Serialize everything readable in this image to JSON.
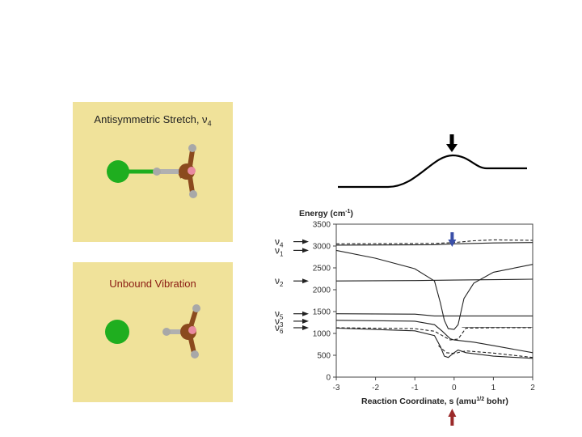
{
  "panels": {
    "top": {
      "caption": "Antisymmetric Stretch, ν",
      "subscript": "4"
    },
    "bottom": {
      "caption": "Unbound Vibration"
    }
  },
  "colors": {
    "panel_bg": "#f0e29a",
    "chlorine": "#1fae1f",
    "carbon": "#8b4a1e",
    "hydrogen": "#a8a8a8",
    "highlight": "#e98aa0",
    "arrow_top": "#000000",
    "arrow_blue": "#3a4fa8",
    "arrow_red": "#9b2a2a"
  },
  "icons": [
    "cl-atom-icon",
    "carbon-atom-icon",
    "hydrogen-atom-icon",
    "down-arrow-icon",
    "up-arrow-icon"
  ],
  "chart_data": {
    "type": "line",
    "title": "Energy (cm",
    "title_sup": "-1",
    "title_end": ")",
    "xlabel": "Reaction Coordinate, s (amu",
    "xlabel_sup": "1/2",
    "xlabel_end": " bohr)",
    "xlim": [
      -3,
      2
    ],
    "ylim": [
      0,
      3500
    ],
    "xticks": [
      "-3",
      "-2",
      "-1",
      "0",
      "1",
      "2"
    ],
    "yticks": [
      "0",
      "500",
      "1000",
      "1500",
      "2000",
      "2500",
      "3000",
      "3500"
    ],
    "mode_labels": [
      {
        "name": "ν",
        "sub": "4",
        "value": 3100
      },
      {
        "name": "ν",
        "sub": "1",
        "value": 2900
      },
      {
        "name": "ν",
        "sub": "2",
        "value": 2200
      },
      {
        "name": "ν",
        "sub": "5",
        "value": 1450
      },
      {
        "name": "ν",
        "sub": "3",
        "value": 1280
      },
      {
        "name": "ν",
        "sub": "6",
        "value": 1130
      }
    ],
    "series": [
      {
        "style": "dashed",
        "points": [
          [
            -3,
            3050
          ],
          [
            -0.5,
            3060
          ],
          [
            0,
            3080
          ],
          [
            0.5,
            3120
          ],
          [
            1,
            3140
          ],
          [
            2,
            3130
          ]
        ]
      },
      {
        "style": "solid",
        "points": [
          [
            -3,
            3020
          ],
          [
            -0.5,
            3030
          ],
          [
            0,
            3050
          ],
          [
            0.5,
            3060
          ],
          [
            1,
            3070
          ],
          [
            2,
            3080
          ]
        ]
      },
      {
        "style": "solid",
        "points": [
          [
            -3,
            2900
          ],
          [
            -2,
            2720
          ],
          [
            -1,
            2480
          ],
          [
            -0.5,
            2200
          ],
          [
            -0.35,
            1700
          ],
          [
            -0.25,
            1300
          ],
          [
            -0.15,
            1110
          ],
          [
            0,
            1090
          ],
          [
            0.1,
            1200
          ],
          [
            0.25,
            1800
          ],
          [
            0.5,
            2150
          ],
          [
            1,
            2400
          ],
          [
            2,
            2580
          ]
        ]
      },
      {
        "style": "solid",
        "points": [
          [
            -3,
            2200
          ],
          [
            -1,
            2210
          ],
          [
            0,
            2220
          ],
          [
            1,
            2230
          ],
          [
            2,
            2240
          ]
        ]
      },
      {
        "style": "solid",
        "points": [
          [
            -3,
            1450
          ],
          [
            -1,
            1440
          ],
          [
            -0.5,
            1400
          ],
          [
            0,
            1400
          ],
          [
            1,
            1400
          ],
          [
            2,
            1400
          ]
        ]
      },
      {
        "style": "solid",
        "points": [
          [
            -3,
            1300
          ],
          [
            -1,
            1280
          ],
          [
            -0.5,
            1200
          ],
          [
            -0.3,
            1050
          ],
          [
            -0.1,
            880
          ],
          [
            0,
            850
          ],
          [
            0.5,
            800
          ],
          [
            1,
            720
          ],
          [
            2,
            560
          ]
        ]
      },
      {
        "style": "dashed",
        "points": [
          [
            -3,
            1130
          ],
          [
            -1,
            1110
          ],
          [
            -0.5,
            1050
          ],
          [
            -0.3,
            950
          ],
          [
            -0.1,
            850
          ],
          [
            0.1,
            870
          ],
          [
            0.3,
            1120
          ],
          [
            1,
            1130
          ],
          [
            2,
            1130
          ]
        ]
      },
      {
        "style": "solid",
        "points": [
          [
            -3,
            1120
          ],
          [
            -1,
            1060
          ],
          [
            -0.5,
            950
          ],
          [
            -0.35,
            700
          ],
          [
            -0.25,
            480
          ],
          [
            -0.15,
            450
          ],
          [
            0,
            560
          ],
          [
            0.1,
            620
          ],
          [
            0.3,
            560
          ],
          [
            1,
            480
          ],
          [
            2,
            430
          ]
        ]
      },
      {
        "style": "dashed",
        "points": [
          [
            -0.4,
            720
          ],
          [
            -0.2,
            560
          ],
          [
            0,
            540
          ],
          [
            0.3,
            600
          ],
          [
            1,
            550
          ],
          [
            2,
            450
          ]
        ]
      }
    ]
  }
}
